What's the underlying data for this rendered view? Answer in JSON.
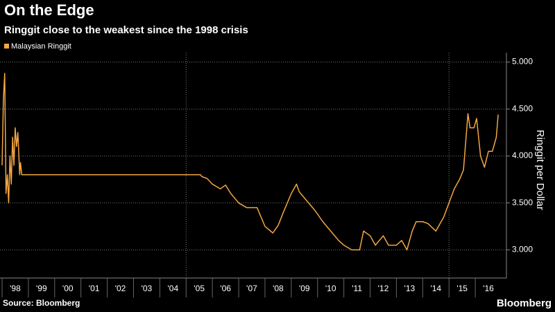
{
  "chart_data": {
    "type": "line",
    "title": "On the Edge",
    "subtitle": "Ringgit close to the weakest since the 1998 crisis",
    "y_axis_label": "Ringgit per Dollar",
    "source": "Source: Bloomberg",
    "brand": "Bloomberg",
    "x": [
      1998.0,
      1998.05,
      1998.1,
      1998.15,
      1998.2,
      1998.25,
      1998.3,
      1998.35,
      1998.4,
      1998.45,
      1998.5,
      1998.55,
      1998.6,
      1998.67,
      1998.7,
      1998.75,
      2005.55,
      2005.6,
      2005.8,
      2006.0,
      2006.3,
      2006.5,
      2006.7,
      2007.0,
      2007.3,
      2007.5,
      2007.7,
      2008.0,
      2008.3,
      2008.5,
      2008.7,
      2009.0,
      2009.2,
      2009.3,
      2009.6,
      2009.9,
      2010.2,
      2010.5,
      2010.8,
      2011.0,
      2011.3,
      2011.6,
      2011.75,
      2012.0,
      2012.2,
      2012.5,
      2012.7,
      2013.0,
      2013.2,
      2013.4,
      2013.6,
      2013.75,
      2014.0,
      2014.2,
      2014.5,
      2014.8,
      2015.0,
      2015.2,
      2015.4,
      2015.55,
      2015.65,
      2015.72,
      2015.8,
      2015.95,
      2016.05,
      2016.2,
      2016.35,
      2016.5,
      2016.65,
      2016.8,
      2016.87
    ],
    "series": [
      {
        "name": "Malaysian Ringgit",
        "color": "#f5a742",
        "values": [
          3.9,
          4.6,
          4.88,
          3.6,
          3.8,
          3.5,
          4.0,
          3.7,
          4.2,
          3.9,
          4.3,
          4.1,
          4.25,
          3.8,
          3.93,
          3.8,
          3.8,
          3.78,
          3.76,
          3.7,
          3.65,
          3.69,
          3.6,
          3.5,
          3.45,
          3.45,
          3.45,
          3.25,
          3.18,
          3.26,
          3.4,
          3.6,
          3.7,
          3.62,
          3.52,
          3.42,
          3.3,
          3.2,
          3.1,
          3.05,
          3.0,
          3.0,
          3.2,
          3.15,
          3.05,
          3.15,
          3.05,
          3.05,
          3.1,
          3.0,
          3.2,
          3.3,
          3.3,
          3.28,
          3.2,
          3.35,
          3.5,
          3.65,
          3.75,
          3.85,
          4.2,
          4.45,
          4.3,
          4.3,
          4.4,
          4.0,
          3.88,
          4.05,
          4.05,
          4.2,
          4.44
        ]
      }
    ],
    "xlim": [
      1998,
      2017
    ],
    "xticks": [
      {
        "value": 1998,
        "label": "'98"
      },
      {
        "value": 1999,
        "label": "'99"
      },
      {
        "value": 2000,
        "label": "'00"
      },
      {
        "value": 2001,
        "label": "'01"
      },
      {
        "value": 2002,
        "label": "'02"
      },
      {
        "value": 2003,
        "label": "'03"
      },
      {
        "value": 2004,
        "label": "'04"
      },
      {
        "value": 2005,
        "label": "'05"
      },
      {
        "value": 2006,
        "label": "'06"
      },
      {
        "value": 2007,
        "label": "'07"
      },
      {
        "value": 2008,
        "label": "'08"
      },
      {
        "value": 2009,
        "label": "'09"
      },
      {
        "value": 2010,
        "label": "'10"
      },
      {
        "value": 2011,
        "label": "'11"
      },
      {
        "value": 2012,
        "label": "'12"
      },
      {
        "value": 2013,
        "label": "'13"
      },
      {
        "value": 2014,
        "label": "'14"
      },
      {
        "value": 2015,
        "label": "'15"
      },
      {
        "value": 2016,
        "label": "'16"
      }
    ],
    "ylim": [
      2.7,
      5.1
    ],
    "yticks": [
      {
        "value": 3,
        "label": "3.000"
      },
      {
        "value": 3.5,
        "label": "3.500"
      },
      {
        "value": 4,
        "label": "4.000"
      },
      {
        "value": 4.5,
        "label": "4.500"
      },
      {
        "value": 5,
        "label": "5.000"
      }
    ],
    "grid": true
  }
}
